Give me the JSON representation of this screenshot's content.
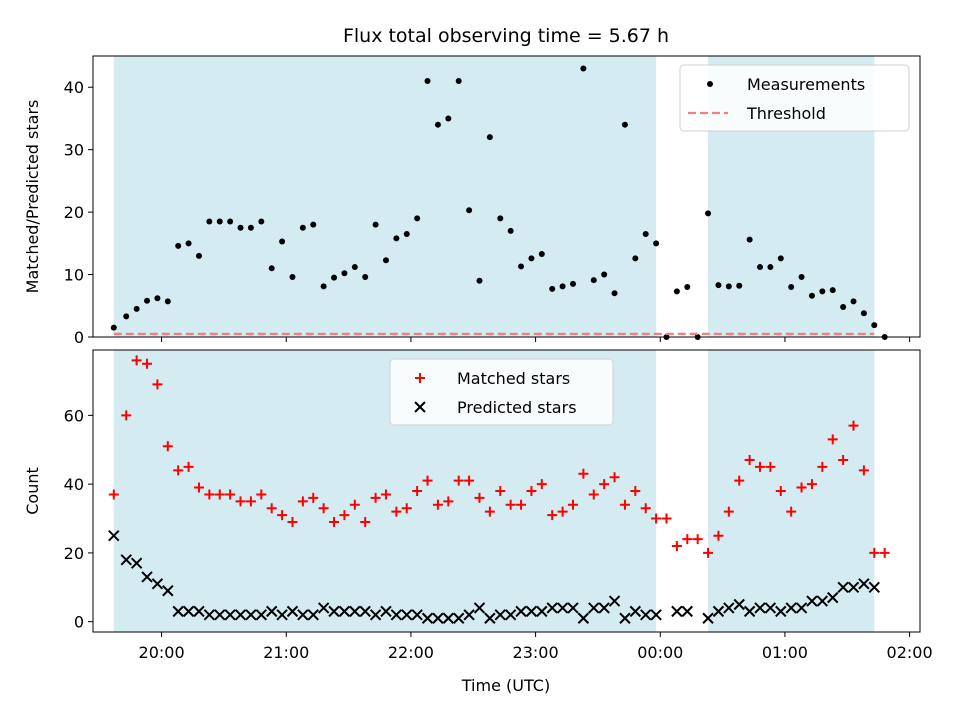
{
  "chart_data": [
    {
      "type": "scatter",
      "title": "Flux total observing time = 5.67 h",
      "xlabel": "",
      "ylabel": "Matched/Predicted stars",
      "ylim": [
        0,
        45
      ],
      "yticks": [
        0,
        10,
        20,
        30,
        40
      ],
      "xlim": [
        "19:27",
        "02:05"
      ],
      "legend_position": "top-right",
      "shaded_intervals": [
        [
          "19:37",
          "23:58"
        ],
        [
          "00:23",
          "01:43"
        ]
      ],
      "shade_color": "#d4ebf1",
      "series": [
        {
          "name": "Measurements",
          "color": "#000000",
          "marker": "dot",
          "x": [
            "19:37",
            "19:43",
            "19:48",
            "19:53",
            "19:58",
            "20:03",
            "20:08",
            "20:13",
            "20:18",
            "20:23",
            "20:28",
            "20:33",
            "20:38",
            "20:43",
            "20:48",
            "20:53",
            "20:58",
            "21:03",
            "21:08",
            "21:13",
            "21:18",
            "21:23",
            "21:28",
            "21:33",
            "21:38",
            "21:43",
            "21:48",
            "21:53",
            "21:58",
            "22:03",
            "22:08",
            "22:13",
            "22:18",
            "22:23",
            "22:28",
            "22:33",
            "22:38",
            "22:43",
            "22:48",
            "22:53",
            "22:58",
            "23:03",
            "23:08",
            "23:13",
            "23:18",
            "23:23",
            "23:28",
            "23:33",
            "23:38",
            "23:43",
            "23:48",
            "23:53",
            "23:58",
            "00:03",
            "00:08",
            "00:13",
            "00:18",
            "00:23",
            "00:28",
            "00:33",
            "00:38",
            "00:43",
            "00:48",
            "00:53",
            "00:58",
            "01:03",
            "01:08",
            "01:13",
            "01:18",
            "01:23",
            "01:28",
            "01:33",
            "01:38",
            "01:43",
            "01:48"
          ],
          "values": [
            1.5,
            3.3,
            4.5,
            5.8,
            6.2,
            5.7,
            14.6,
            15,
            13,
            18.5,
            18.5,
            18.5,
            17.5,
            17.5,
            18.5,
            11,
            15.3,
            9.6,
            17.5,
            18,
            8.1,
            9.5,
            10.2,
            11.2,
            9.6,
            18,
            12.3,
            15.8,
            16.5,
            19,
            41,
            34,
            35,
            41,
            20.3,
            9,
            32,
            19,
            17,
            11.3,
            12.6,
            13.3,
            7.7,
            8.1,
            8.5,
            43,
            9.1,
            10,
            7,
            34,
            12.6,
            16.5,
            15,
            0,
            7.3,
            8,
            0,
            19.8,
            8.3,
            8.1,
            8.2,
            15.6,
            11.2,
            11.2,
            12.6,
            8,
            9.6,
            6.6,
            7.3,
            7.5,
            4.8,
            5.7,
            3.8,
            1.9,
            0
          ]
        },
        {
          "name": "Threshold",
          "color": "#f08080",
          "style": "dashed",
          "x": [
            "19:37",
            "01:43"
          ],
          "values": [
            0.5,
            0.5
          ]
        }
      ]
    },
    {
      "type": "scatter",
      "title": "",
      "xlabel": "Time (UTC)",
      "ylabel": "Count",
      "ylim": [
        -3,
        79
      ],
      "yticks": [
        0,
        20,
        40,
        60
      ],
      "xlim": [
        "19:27",
        "02:05"
      ],
      "xticks": [
        "20:00",
        "21:00",
        "22:00",
        "23:00",
        "00:00",
        "01:00",
        "02:00"
      ],
      "legend_position": "top-center",
      "shaded_intervals": [
        [
          "19:37",
          "23:58"
        ],
        [
          "00:23",
          "01:43"
        ]
      ],
      "shade_color": "#d4ebf1",
      "series": [
        {
          "name": "Matched stars",
          "color": "#ff0000",
          "marker": "plus",
          "x": [
            "19:37",
            "19:43",
            "19:48",
            "19:53",
            "19:58",
            "20:03",
            "20:08",
            "20:13",
            "20:18",
            "20:23",
            "20:28",
            "20:33",
            "20:38",
            "20:43",
            "20:48",
            "20:53",
            "20:58",
            "21:03",
            "21:08",
            "21:13",
            "21:18",
            "21:23",
            "21:28",
            "21:33",
            "21:38",
            "21:43",
            "21:48",
            "21:53",
            "21:58",
            "22:03",
            "22:08",
            "22:13",
            "22:18",
            "22:23",
            "22:28",
            "22:33",
            "22:38",
            "22:43",
            "22:48",
            "22:53",
            "22:58",
            "23:03",
            "23:08",
            "23:13",
            "23:18",
            "23:23",
            "23:28",
            "23:33",
            "23:38",
            "23:43",
            "23:48",
            "23:53",
            "23:58",
            "00:03",
            "00:08",
            "00:13",
            "00:18",
            "00:23",
            "00:28",
            "00:33",
            "00:38",
            "00:43",
            "00:48",
            "00:53",
            "00:58",
            "01:03",
            "01:08",
            "01:13",
            "01:18",
            "01:23",
            "01:28",
            "01:33",
            "01:38",
            "01:43",
            "01:48"
          ],
          "values": [
            37,
            60,
            76,
            75,
            69,
            51,
            44,
            45,
            39,
            37,
            37,
            37,
            35,
            35,
            37,
            33,
            31,
            29,
            35,
            36,
            33,
            29,
            31,
            34,
            29,
            36,
            37,
            32,
            33,
            38,
            41,
            34,
            35,
            41,
            41,
            36,
            32,
            38,
            34,
            34,
            38,
            40,
            31,
            32,
            34,
            43,
            37,
            40,
            42,
            34,
            38,
            33,
            30,
            30,
            22,
            24,
            24,
            20,
            25,
            32,
            41,
            47,
            45,
            45,
            38,
            32,
            39,
            40,
            45,
            53,
            47,
            57,
            44,
            20,
            20
          ]
        },
        {
          "name": "Predicted stars",
          "color": "#000000",
          "marker": "x",
          "x": [
            "19:37",
            "19:43",
            "19:48",
            "19:53",
            "19:58",
            "20:03",
            "20:08",
            "20:13",
            "20:18",
            "20:23",
            "20:28",
            "20:33",
            "20:38",
            "20:43",
            "20:48",
            "20:53",
            "20:58",
            "21:03",
            "21:08",
            "21:13",
            "21:18",
            "21:23",
            "21:28",
            "21:33",
            "21:38",
            "21:43",
            "21:48",
            "21:53",
            "21:58",
            "22:03",
            "22:08",
            "22:13",
            "22:18",
            "22:23",
            "22:28",
            "22:33",
            "22:38",
            "22:43",
            "22:48",
            "22:53",
            "22:58",
            "23:03",
            "23:08",
            "23:13",
            "23:18",
            "23:23",
            "23:28",
            "23:33",
            "23:38",
            "23:43",
            "23:48",
            "23:53",
            "23:58",
            "00:08",
            "00:13",
            "00:23",
            "00:28",
            "00:33",
            "00:38",
            "00:43",
            "00:48",
            "00:53",
            "00:58",
            "01:03",
            "01:08",
            "01:13",
            "01:18",
            "01:23",
            "01:28",
            "01:33",
            "01:38",
            "01:43"
          ],
          "values": [
            25,
            18,
            17,
            13,
            11,
            9,
            3,
            3,
            3,
            2,
            2,
            2,
            2,
            2,
            2,
            3,
            2,
            3,
            2,
            2,
            4,
            3,
            3,
            3,
            3,
            2,
            3,
            2,
            2,
            2,
            1,
            1,
            1,
            1,
            2,
            4,
            1,
            2,
            2,
            3,
            3,
            3,
            4,
            4,
            4,
            1,
            4,
            4,
            6,
            1,
            3,
            2,
            2,
            3,
            3,
            1,
            3,
            4,
            5,
            3,
            4,
            4,
            3,
            4,
            4,
            6,
            6,
            7,
            10,
            10,
            11,
            10
          ]
        }
      ]
    }
  ]
}
